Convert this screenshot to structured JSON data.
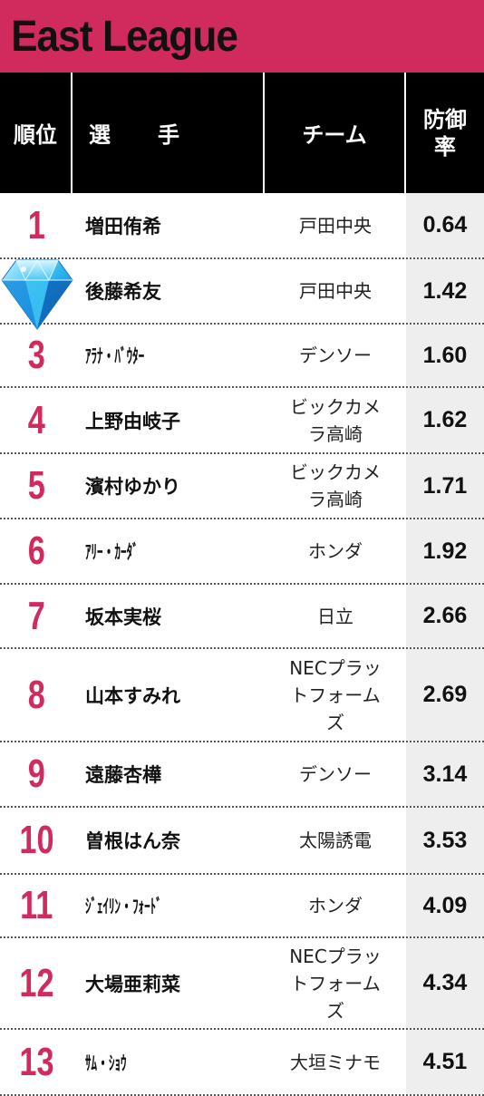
{
  "title": "East League",
  "headers": {
    "rank": "順位",
    "player": "選　手",
    "team": "チーム",
    "era_line1": "防御",
    "era_line2": "率"
  },
  "rows": [
    {
      "rank": "1",
      "player": "増田侑希",
      "team_line1": "戸田中央",
      "team_line2": "",
      "team_line3": "",
      "era": "0.64"
    },
    {
      "rank": "",
      "player": "後藤希友",
      "team_line1": "戸田中央",
      "team_line2": "",
      "team_line3": "",
      "era": "1.42"
    },
    {
      "rank": "3",
      "player": "ｱﾗﾅ・ﾊﾞｳﾀｰ",
      "team_line1": "デンソー",
      "team_line2": "",
      "team_line3": "",
      "era": "1.60"
    },
    {
      "rank": "4",
      "player": "上野由岐子",
      "team_line1": "ビックカメ",
      "team_line2": "ラ高崎",
      "team_line3": "",
      "era": "1.62"
    },
    {
      "rank": "5",
      "player": "濱村ゆかり",
      "team_line1": "ビックカメ",
      "team_line2": "ラ高崎",
      "team_line3": "",
      "era": "1.71"
    },
    {
      "rank": "6",
      "player": "ｱﾘｰ・ｶｰﾀﾞ",
      "team_line1": "ホンダ",
      "team_line2": "",
      "team_line3": "",
      "era": "1.92"
    },
    {
      "rank": "7",
      "player": "坂本実桜",
      "team_line1": "日立",
      "team_line2": "",
      "team_line3": "",
      "era": "2.66"
    },
    {
      "rank": "8",
      "player": "山本すみれ",
      "team_line1": "NECプラッ",
      "team_line2": "トフォーム",
      "team_line3": "ズ",
      "era": "2.69"
    },
    {
      "rank": "9",
      "player": "遠藤杏樺",
      "team_line1": "デンソー",
      "team_line2": "",
      "team_line3": "",
      "era": "3.14"
    },
    {
      "rank": "10",
      "player": "曽根はん奈",
      "team_line1": "太陽誘電",
      "team_line2": "",
      "team_line3": "",
      "era": "3.53"
    },
    {
      "rank": "11",
      "player": "ｼﾞｪｲﾘﾝ・ﾌｫｰﾄﾞ",
      "team_line1": "ホンダ",
      "team_line2": "",
      "team_line3": "",
      "era": "4.09"
    },
    {
      "rank": "12",
      "player": "大場亜莉菜",
      "team_line1": "NECプラッ",
      "team_line2": "トフォーム",
      "team_line3": "ズ",
      "era": "4.34"
    },
    {
      "rank": "13",
      "player": "ｻﾑ・ｼｮｳ",
      "team_line1": "大垣ミナモ",
      "team_line2": "",
      "team_line3": "",
      "era": "4.51"
    }
  ],
  "icons": {
    "rank2": "diamond-icon"
  },
  "colors": {
    "accent": "#d12b5e",
    "header_bg": "#000000",
    "era_bg": "#eeeeee"
  }
}
